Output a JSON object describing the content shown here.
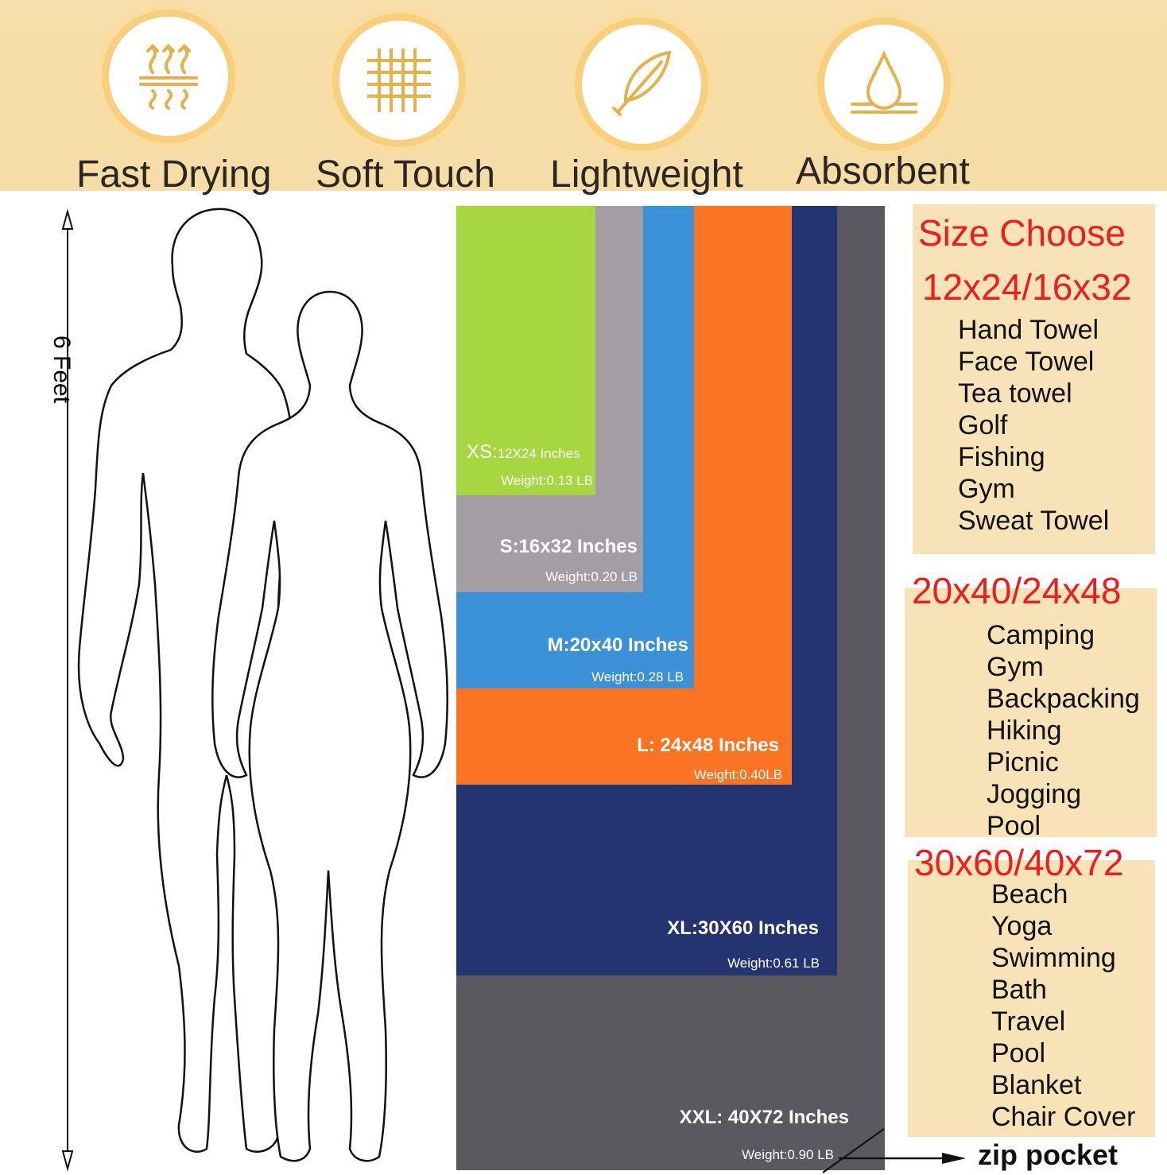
{
  "features": [
    {
      "label": "Fast Drying",
      "icon": "heat-waves-icon"
    },
    {
      "label": "Soft Touch",
      "icon": "fabric-weave-icon"
    },
    {
      "label": "Lightweight",
      "icon": "feather-icon"
    },
    {
      "label": "Absorbent",
      "icon": "water-drop-icon"
    }
  ],
  "height_label": "6 Feet",
  "sizes": [
    {
      "size": "XXL: 40X72 Inches",
      "weight": "Weight:0.90 LB",
      "color": "#5c5860"
    },
    {
      "size": "XL:30X60 Inches",
      "weight": "Weight:0.61 LB",
      "color": "#243470"
    },
    {
      "size": "L: 24x48 Inches",
      "weight": "Weight:0.40LB",
      "color": "#fb7424"
    },
    {
      "size": "M:20x40 Inches",
      "weight": "Weight:0.28 LB",
      "color": "#3a91d8"
    },
    {
      "size": "S:16x32 Inches",
      "weight": "Weight:0.20 LB",
      "color": "#a29ea3"
    },
    {
      "size_prefix": "XS:",
      "size": "12X24 Inches",
      "weight": "Weight:0.13 LB",
      "color": "#a6d640"
    }
  ],
  "zip_label": "zip pocket",
  "size_choose": {
    "title": "Size Choose",
    "groups": [
      {
        "heading": "12x24/16x32",
        "uses": [
          "Hand Towel",
          "Face Towel",
          "Tea towel",
          "Golf",
          "Fishing",
          "Gym",
          "Sweat Towel"
        ]
      },
      {
        "heading": "20x40/24x48",
        "uses": [
          "Camping",
          "Gym",
          "Backpacking",
          "Hiking",
          "Picnic",
          "Jogging",
          "Pool"
        ]
      },
      {
        "heading": "30x60/40x72",
        "uses": [
          "Beach",
          "Yoga",
          "Swimming",
          "Bath",
          "Travel",
          "Pool",
          "Blanket",
          "Chair Cover"
        ]
      }
    ]
  },
  "colors": {
    "band": "#f7deaa",
    "accent_red": "#ee1c1c",
    "ring": "#f7cf7d"
  }
}
